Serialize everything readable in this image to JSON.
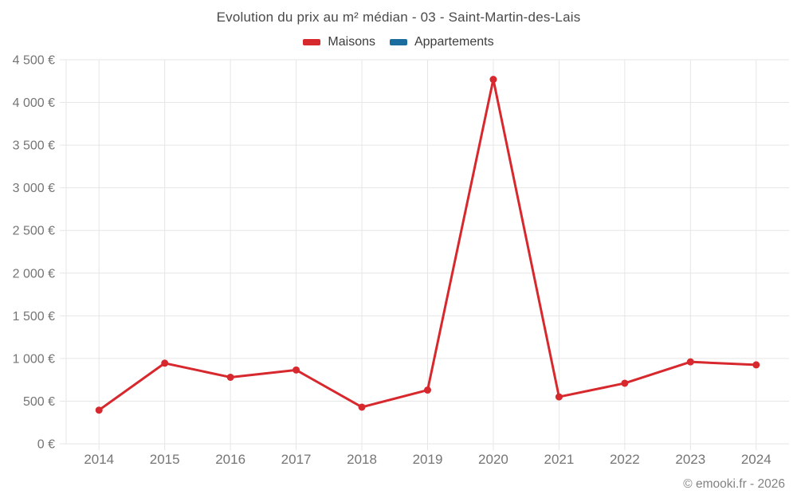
{
  "header": {
    "title": "Evolution du prix au m² médian - 03 - Saint-Martin-des-Lais"
  },
  "legend": {
    "items": [
      {
        "label": "Maisons",
        "color": "#d7282e"
      },
      {
        "label": "Appartements",
        "color": "#1a6d9e"
      }
    ]
  },
  "footer": {
    "text": "© emooki.fr - 2026"
  },
  "chart_data": {
    "type": "line",
    "title": "Evolution du prix au m² médian - 03 - Saint-Martin-des-Lais",
    "categories": [
      "2014",
      "2015",
      "2016",
      "2017",
      "2018",
      "2019",
      "2020",
      "2021",
      "2022",
      "2023",
      "2024"
    ],
    "series": [
      {
        "name": "Maisons",
        "color": "#d7282e",
        "values": [
          395,
          945,
          780,
          865,
          430,
          630,
          4270,
          550,
          710,
          960,
          925
        ]
      },
      {
        "name": "Appartements",
        "color": "#1a6d9e",
        "values": []
      }
    ],
    "xlabel": "",
    "ylabel": "",
    "ylim": [
      0,
      4500
    ],
    "ytick_step": 500,
    "ytick_labels": [
      "0 €",
      "500 €",
      "1 000 €",
      "1 500 €",
      "2 000 €",
      "2 500 €",
      "3 000 €",
      "3 500 €",
      "4 000 €",
      "4 500 €"
    ],
    "grid": true,
    "legend_position": "top",
    "legend_entries": [
      "Maisons",
      "Appartements"
    ]
  }
}
